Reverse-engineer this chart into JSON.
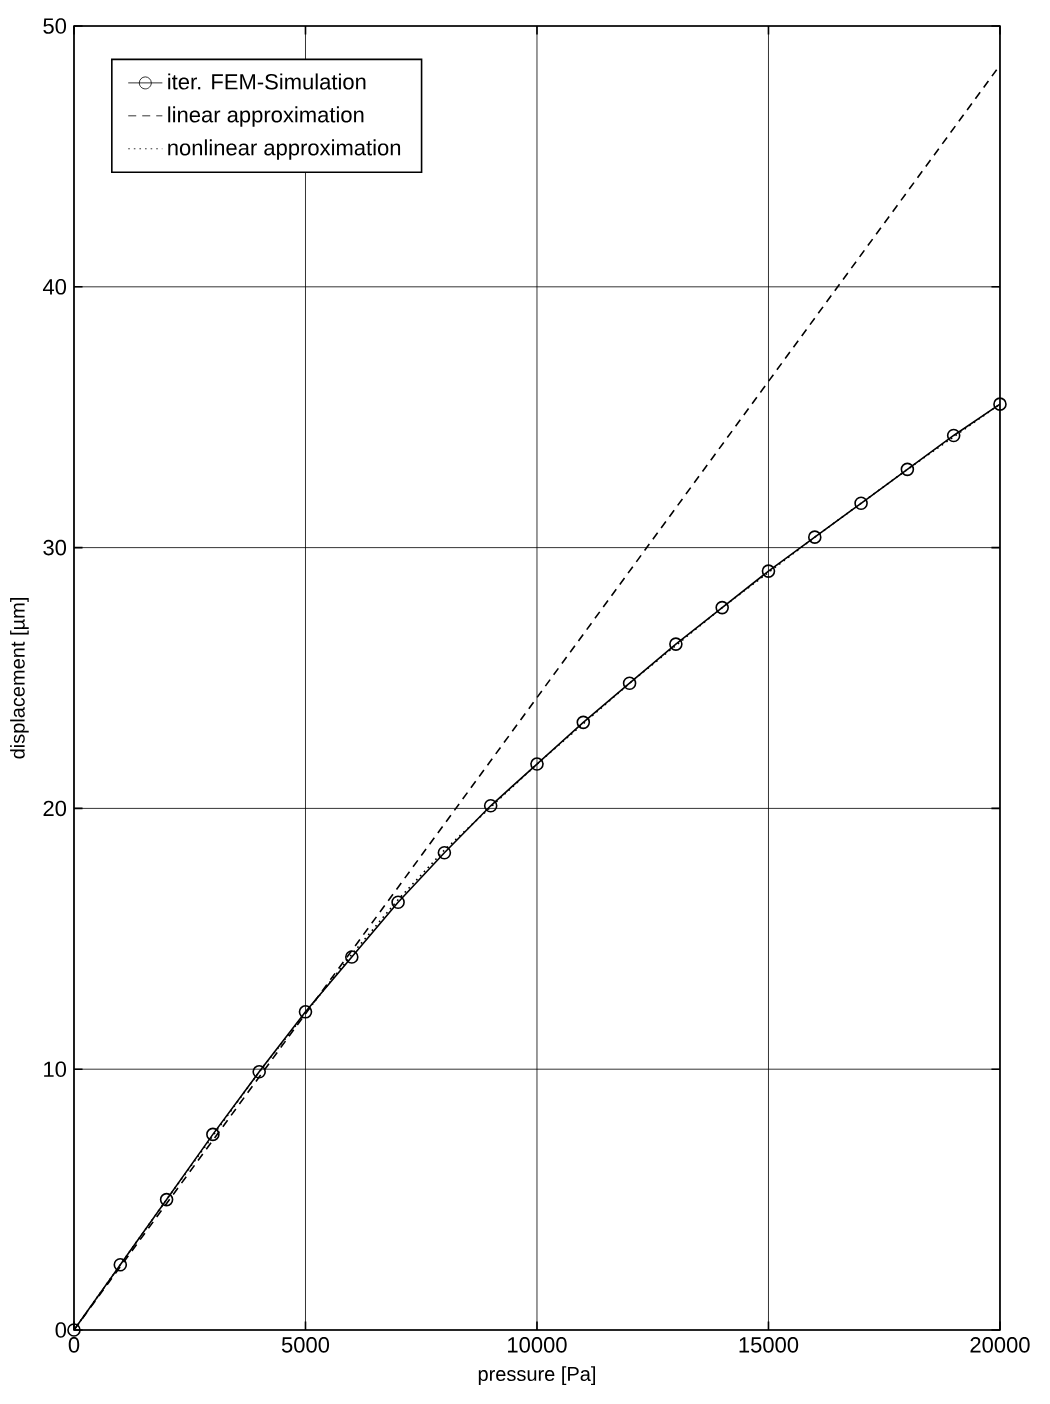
{
  "chart_data": {
    "type": "line",
    "xlabel": "pressure [Pa]",
    "ylabel": "displacement [µm]",
    "xlim": [
      0,
      20000
    ],
    "ylim": [
      0,
      50
    ],
    "xticks": [
      0,
      5000,
      10000,
      15000,
      20000
    ],
    "yticks": [
      0,
      10,
      20,
      30,
      40,
      50
    ],
    "grid": true,
    "legend": "top left",
    "series": [
      {
        "name": "iter. FEM-Simulation",
        "color": "#000000",
        "marker": "circle",
        "line_style": "solid",
        "x": [
          0,
          1000,
          2000,
          3000,
          4000,
          5000,
          6000,
          7000,
          8000,
          9000,
          10000,
          11000,
          12000,
          13000,
          14000,
          15000,
          16000,
          17000,
          18000,
          19000,
          20000
        ],
        "values": [
          0,
          2.5,
          5,
          7.5,
          9.9,
          12.2,
          14.3,
          16.4,
          18.3,
          20.1,
          21.7,
          23.3,
          24.8,
          26.3,
          27.7,
          29.1,
          30.4,
          31.7,
          33.0,
          34.3,
          35.5
        ]
      },
      {
        "name": "linear approximation",
        "color": "#000000",
        "marker": "none",
        "line_style": "dashed",
        "x": [
          0,
          20000
        ],
        "values": [
          0,
          48.5
        ]
      },
      {
        "name": "nonlinear approximation",
        "color": "#000000",
        "marker": "none",
        "line_style": "dotted",
        "x": [
          0,
          2000,
          4000,
          6000,
          7000,
          8000,
          10000,
          12000,
          14000,
          16000,
          18000,
          20000
        ],
        "values": [
          0,
          5,
          9.9,
          14.4,
          16.5,
          18.4,
          21.7,
          24.8,
          27.7,
          30.4,
          33.0,
          35.5
        ]
      }
    ]
  }
}
